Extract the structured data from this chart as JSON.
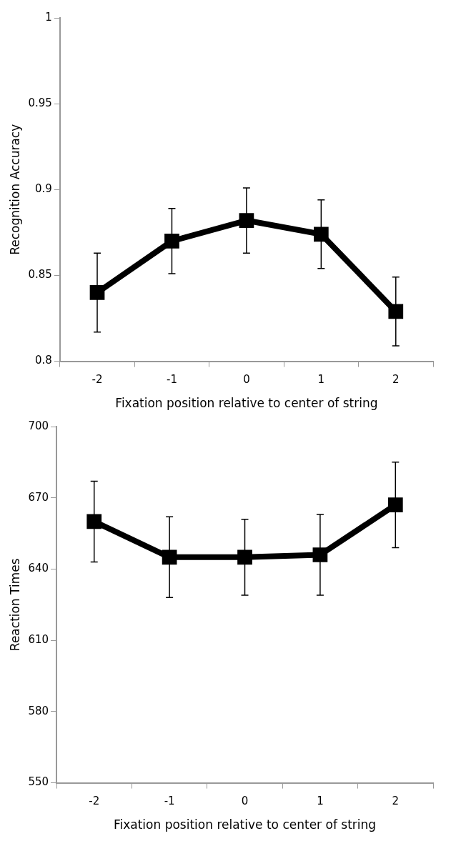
{
  "chart_data": [
    {
      "type": "line",
      "categories": [
        "-2",
        "-1",
        "0",
        "1",
        "2"
      ],
      "values": [
        0.84,
        0.87,
        0.882,
        0.874,
        0.829
      ],
      "errors": [
        0.023,
        0.019,
        0.019,
        0.02,
        0.02
      ],
      "color": "#000000",
      "marker": "square",
      "line_style": "solid",
      "ylabel": "Recognition Accuracy",
      "xlabel": "Fixation position relative to center of string",
      "ylim": [
        0.8,
        1
      ],
      "yticks": [
        0.8,
        0.85,
        0.9,
        0.95,
        1
      ],
      "grid": false
    },
    {
      "type": "line",
      "categories": [
        "-2",
        "-1",
        "0",
        "1",
        "2"
      ],
      "values": [
        660,
        645,
        645,
        646,
        667
      ],
      "errors": [
        17,
        17,
        16,
        17,
        18
      ],
      "color": "#000000",
      "marker": "square",
      "line_style": "solid",
      "ylabel": "Reaction Times",
      "xlabel": "Fixation position relative to center of string",
      "ylim": [
        550,
        700
      ],
      "yticks": [
        550,
        580,
        610,
        640,
        670,
        700
      ],
      "grid": false
    }
  ]
}
